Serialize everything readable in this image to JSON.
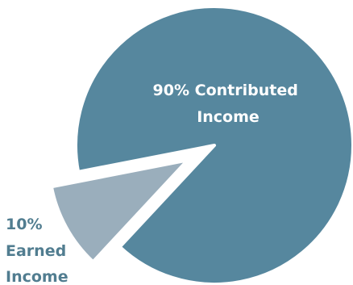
{
  "chart_data": {
    "type": "pie",
    "title": "",
    "slices": [
      {
        "label": "Contributed Income",
        "value": 90,
        "color": "#56879e",
        "label_color": "#ffffff"
      },
      {
        "label": "Earned Income",
        "value": 10,
        "color": "#9aaebc",
        "label_color": "#517d90",
        "exploded": true
      }
    ],
    "slice_labels": [
      {
        "lines": [
          "90% Contributed",
          "Income"
        ]
      },
      {
        "lines": [
          "10%",
          "Earned",
          "Income"
        ]
      }
    ],
    "legend": "none"
  }
}
